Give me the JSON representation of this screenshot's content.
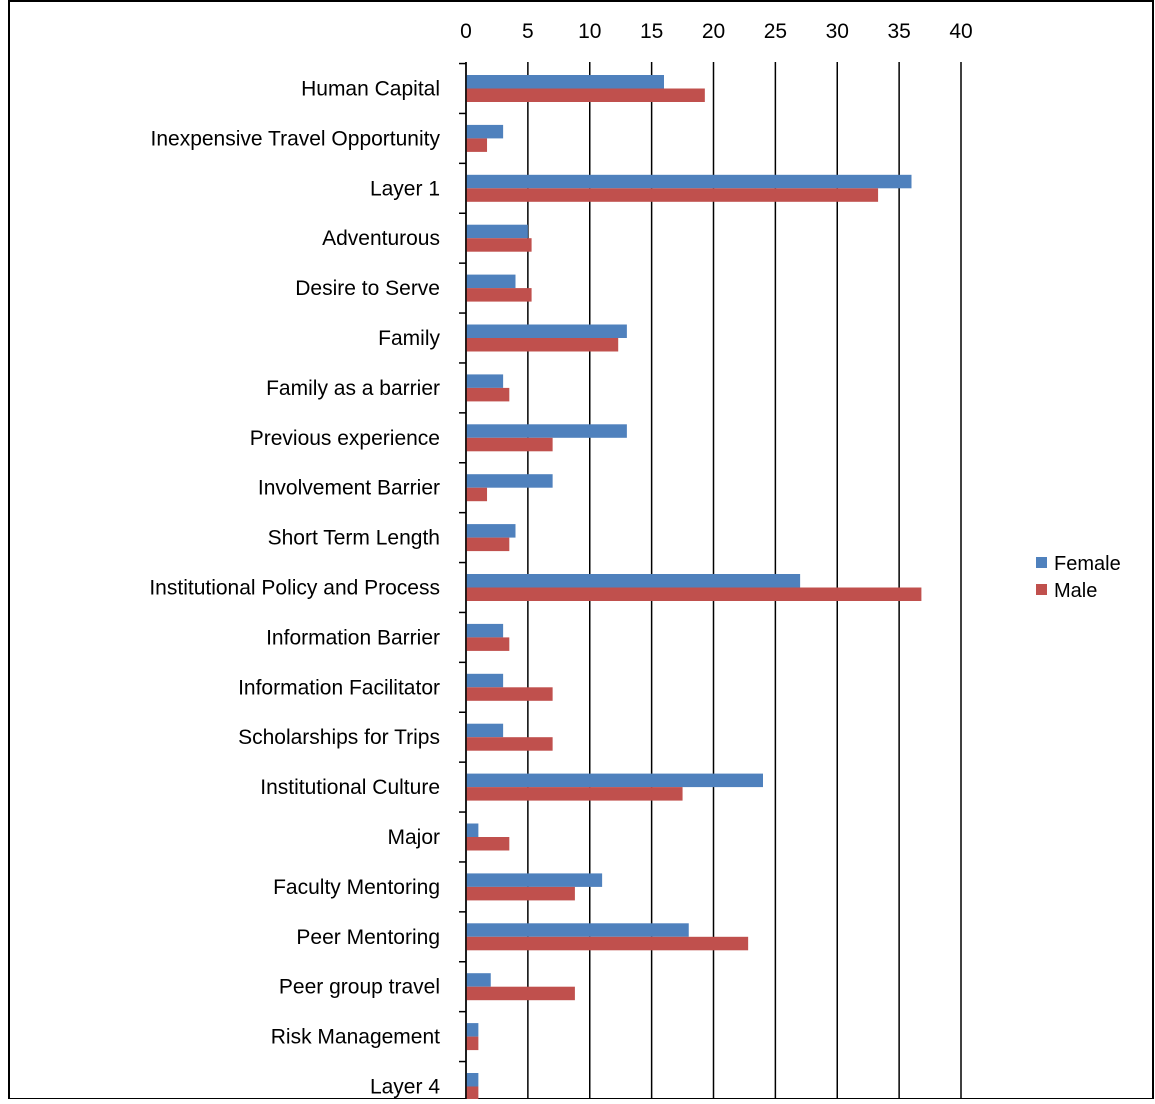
{
  "chart_data": {
    "type": "bar",
    "orientation": "horizontal",
    "categories": [
      "Human Capital",
      "Inexpensive Travel Opportunity",
      "Layer 1",
      "Adventurous",
      "Desire to Serve",
      "Family",
      "Family as a barrier",
      "Previous experience",
      "Involvement Barrier",
      "Short Term Length",
      "Institutional Policy and Process",
      "Information Barrier",
      "Information Facilitator",
      "Scholarships for Trips",
      "Institutional Culture",
      "Major",
      "Faculty Mentoring",
      "Peer Mentoring",
      "Peer group travel",
      "Risk Management",
      "Layer 4"
    ],
    "series": [
      {
        "name": "Female",
        "color": "#4F81BD",
        "values": [
          16,
          3,
          36,
          5,
          4,
          13,
          3,
          13,
          7,
          4,
          27,
          3,
          3,
          3,
          24,
          1,
          11,
          18,
          2,
          1,
          1
        ]
      },
      {
        "name": "Male",
        "color": "#C0504D",
        "values": [
          19.3,
          1.7,
          33.3,
          5.3,
          5.3,
          12.3,
          3.5,
          7,
          1.7,
          3.5,
          36.8,
          3.5,
          7,
          7,
          17.5,
          3.5,
          8.8,
          22.8,
          8.8,
          1,
          1
        ]
      }
    ],
    "xlim": [
      0,
      40
    ],
    "xticks": [
      0,
      5,
      10,
      15,
      20,
      25,
      30,
      35,
      40
    ],
    "x_axis_position": "top",
    "grid": true,
    "legend_position": "right",
    "title": "",
    "xlabel": "",
    "ylabel": ""
  }
}
